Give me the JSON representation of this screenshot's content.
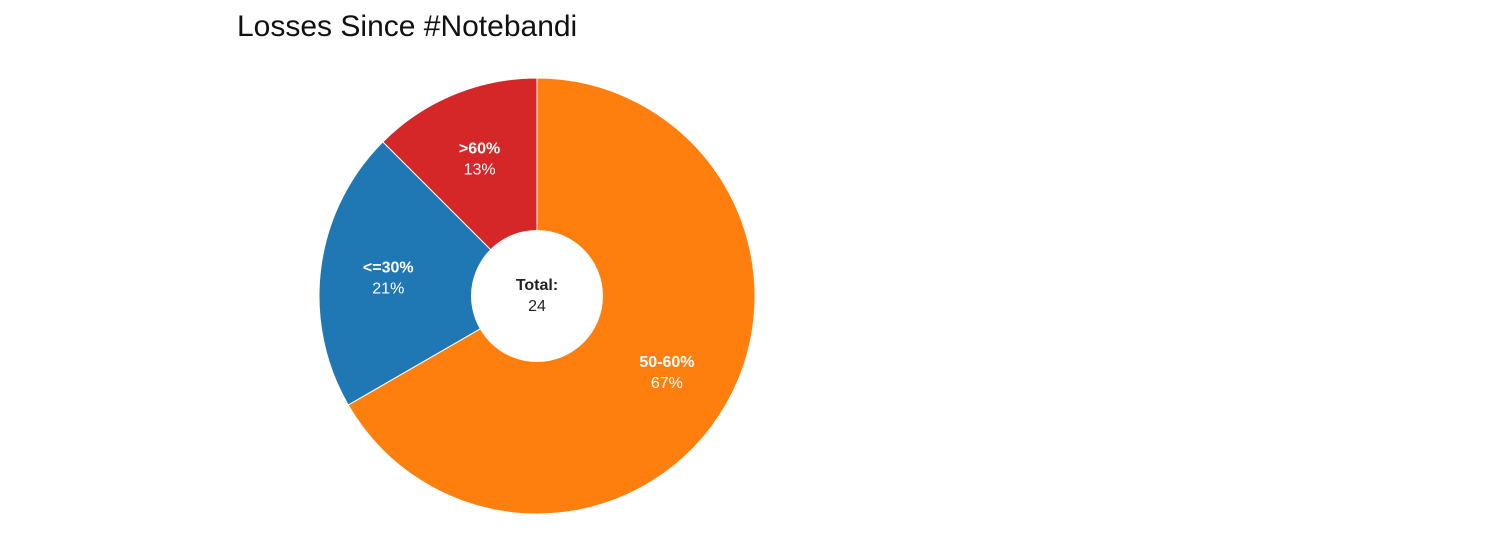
{
  "chart_data": {
    "type": "pie",
    "title": "Losses Since #Notebandi",
    "donut": true,
    "center_label": {
      "title": "Total:",
      "value": "24"
    },
    "slices": [
      {
        "label": "50-60%",
        "value": 16,
        "percent_label": "67%",
        "color": "#ff7f0e"
      },
      {
        "label": "<=30%",
        "value": 5,
        "percent_label": "21%",
        "color": "#1f77b4"
      },
      {
        "label": ">60%",
        "value": 3,
        "percent_label": "13%",
        "color": "#d62728"
      }
    ]
  }
}
